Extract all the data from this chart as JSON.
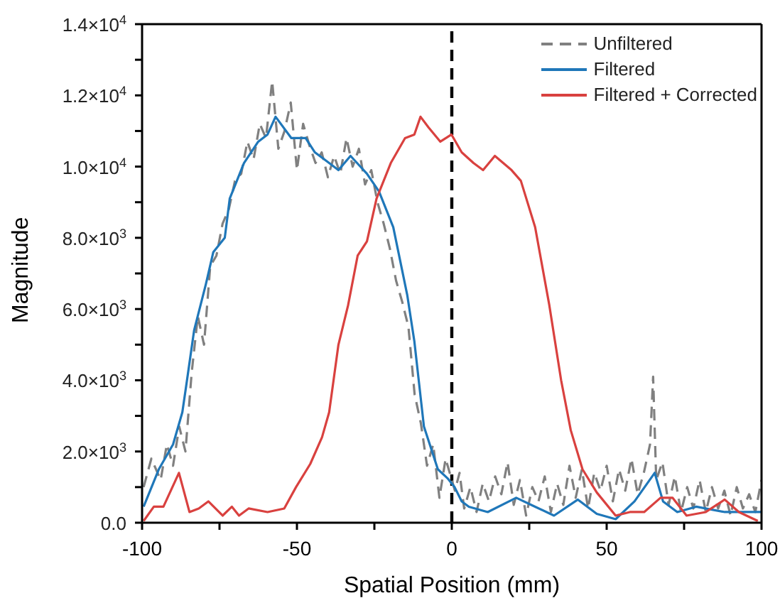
{
  "chart_data": {
    "type": "line",
    "xlabel": "Spatial Position (mm)",
    "ylabel": "Magnitude",
    "xlim": [
      -100,
      100
    ],
    "ylim": [
      0,
      14000
    ],
    "xticks": [
      -100,
      {
        "value": -75,
        "label": null
      },
      -50,
      {
        "value": -25,
        "label": null
      },
      0,
      {
        "value": 25,
        "label": null
      },
      50,
      {
        "value": 75,
        "label": null
      },
      100
    ],
    "yticks": [
      {
        "value": 0,
        "label": "0.0"
      },
      {
        "value": 1000,
        "label": null
      },
      {
        "value": 2000,
        "label": "2.0×10$^{3}$"
      },
      {
        "value": 3000,
        "label": null
      },
      {
        "value": 4000,
        "label": "4.0×10$^{3}$"
      },
      {
        "value": 5000,
        "label": null
      },
      {
        "value": 6000,
        "label": "6.0×10$^{3}$"
      },
      {
        "value": 7000,
        "label": null
      },
      {
        "value": 8000,
        "label": "8.0×10$^{3}$"
      },
      {
        "value": 9000,
        "label": null
      },
      {
        "value": 10000,
        "label": "1.0×10$^{4}$"
      },
      {
        "value": 11000,
        "label": null
      },
      {
        "value": 12000,
        "label": "1.2×10$^{4}$"
      },
      {
        "value": 13000,
        "label": null
      },
      {
        "value": 14000,
        "label": "1.4×10$^{4}$"
      }
    ],
    "grid": false,
    "legend": "top right",
    "marker": "none",
    "ref_lines": [
      {
        "axis": "x",
        "value": 0,
        "color": "#000000",
        "line_style": "dashed"
      }
    ],
    "series": [
      {
        "name": "Unfiltered",
        "color": "#808080",
        "line_style": "dashed",
        "x": [
          -99.5,
          -97,
          -94,
          -92,
          -90,
          -88,
          -86,
          -84,
          -82,
          -80,
          -78,
          -76,
          -74,
          -72,
          -70,
          -68,
          -66,
          -64,
          -62,
          -60,
          -58,
          -56,
          -54,
          -52,
          -50,
          -48,
          -46,
          -44,
          -42,
          -40,
          -38,
          -36,
          -34,
          -32,
          -30,
          -28,
          -26,
          -24,
          -22,
          -20,
          -18,
          -16,
          -14,
          -12,
          -10,
          -8,
          -6,
          -4,
          -2,
          1,
          2.5,
          4,
          6,
          8,
          10,
          12,
          14,
          16,
          18,
          20,
          22,
          24,
          26,
          28,
          30,
          32,
          34,
          36,
          38,
          40,
          42,
          44,
          46,
          48,
          50,
          52,
          54,
          56,
          58,
          60,
          62,
          64,
          65,
          66,
          68,
          70,
          72,
          74,
          76,
          78,
          80,
          82,
          84,
          86,
          88,
          90,
          92,
          94,
          96,
          98,
          100
        ],
        "values": [
          1000,
          1800,
          1200,
          2200,
          1600,
          2700,
          2000,
          4200,
          5800,
          5000,
          7200,
          7500,
          8400,
          8800,
          9600,
          9800,
          10700,
          10200,
          11200,
          10800,
          12400,
          10500,
          11000,
          11800,
          9900,
          11200,
          10600,
          10100,
          10400,
          9700,
          10300,
          9800,
          10800,
          10000,
          10500,
          9500,
          9900,
          9000,
          8400,
          7700,
          6800,
          6200,
          5500,
          3600,
          2800,
          1600,
          2200,
          700,
          1800,
          900,
          1400,
          400,
          1000,
          300,
          1100,
          600,
          1300,
          800,
          1700,
          500,
          1200,
          200,
          1000,
          600,
          1300,
          300,
          1100,
          500,
          1600,
          700,
          1500,
          400,
          1400,
          900,
          1600,
          600,
          1500,
          900,
          1800,
          800,
          1400,
          2200,
          4100,
          1200,
          1700,
          500,
          1300,
          300,
          1000,
          400,
          1200,
          300,
          1000,
          400,
          900,
          200,
          1000,
          400,
          800,
          300,
          1200
        ]
      },
      {
        "name": "Filtered",
        "color": "#1f77b9",
        "line_style": "solid",
        "x": [
          -99.5,
          -94.6,
          -90,
          -87,
          -85.5,
          -83.2,
          -79.4,
          -77,
          -73.3,
          -71.7,
          -67.1,
          -62.5,
          -59.5,
          -56.9,
          -51.8,
          -47.2,
          -44.2,
          -39.6,
          -36.6,
          -32.7,
          -27.4,
          -23.5,
          -18.9,
          -14.4,
          -12.1,
          -9,
          -4.5,
          -1.4,
          0.9,
          3.2,
          5.5,
          11.6,
          20.8,
          26.9,
          33,
          40.7,
          46.8,
          52.9,
          59,
          65.5,
          68.2,
          72.8,
          78.9,
          88.1,
          95.7,
          100
        ],
        "values": [
          450,
          1500,
          2200,
          3100,
          4000,
          5400,
          6700,
          7600,
          8000,
          9100,
          10100,
          10700,
          10900,
          11400,
          10800,
          10800,
          10400,
          10100,
          9900,
          10300,
          9800,
          9300,
          8300,
          6400,
          5100,
          2700,
          1500,
          1250,
          1000,
          600,
          450,
          300,
          700,
          450,
          200,
          650,
          250,
          100,
          600,
          1400,
          600,
          300,
          450,
          300,
          300,
          300
        ]
      },
      {
        "name": "Filtered + Corrected",
        "color": "#d9413f",
        "line_style": "solid",
        "x": [
          -99.5,
          -96.2,
          -93.1,
          -88.1,
          -84.7,
          -81.7,
          -78.6,
          -74,
          -71,
          -68.7,
          -65.6,
          -59.5,
          -54.1,
          -50.3,
          -45.7,
          -41.9,
          -39.6,
          -36.6,
          -33.5,
          -30.4,
          -27.4,
          -24.3,
          -19.7,
          -15.1,
          -12.1,
          -10.1,
          -7.5,
          -3.7,
          -0.1,
          3.2,
          7,
          10.1,
          13.9,
          19.3,
          22.3,
          26.9,
          31.5,
          35.3,
          38.4,
          42.2,
          46.8,
          52.9,
          57.5,
          62.1,
          67.4,
          71.3,
          75.8,
          82,
          88.1,
          92.7,
          98.8
        ],
        "values": [
          50,
          450,
          450,
          1400,
          300,
          400,
          600,
          200,
          450,
          200,
          400,
          300,
          400,
          1000,
          1650,
          2400,
          3100,
          5000,
          6100,
          7500,
          7900,
          9100,
          10100,
          10800,
          10900,
          11400,
          11100,
          10700,
          10900,
          10400,
          10100,
          9900,
          10300,
          9900,
          9600,
          8300,
          6100,
          4000,
          2600,
          1500,
          850,
          200,
          300,
          300,
          700,
          700,
          200,
          300,
          650,
          300,
          50
        ]
      }
    ]
  }
}
